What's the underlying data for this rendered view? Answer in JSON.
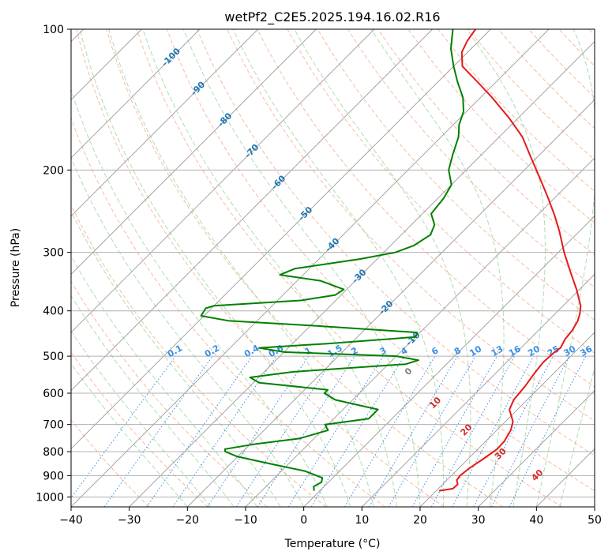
{
  "chart_data": {
    "type": "line",
    "chart_kind": "skew-T log-P",
    "title": "wetPf2_C2E5.2025.194.16.02.R16",
    "xlabel": "Temperature (°C)",
    "ylabel": "Pressure (hPa)",
    "xlim": [
      -40,
      50
    ],
    "ylim": [
      1050,
      100
    ],
    "yscale": "log",
    "x_ticks": [
      -40,
      -30,
      -20,
      -10,
      0,
      10,
      20,
      30,
      40,
      50
    ],
    "x_tick_labels": [
      "−40",
      "−30",
      "−20",
      "−10",
      "0",
      "10",
      "20",
      "30",
      "40",
      "50"
    ],
    "y_ticks": [
      1000,
      900,
      800,
      700,
      600,
      500,
      400,
      300,
      200,
      100
    ],
    "y_tick_labels": [
      "1000",
      "900",
      "800",
      "700",
      "600",
      "500",
      "400",
      "300",
      "200",
      "100"
    ],
    "grid": true,
    "colors": {
      "temperature": "#e41a1c",
      "dewpoint": "#008000",
      "dry_adiabat": "#f4a582",
      "moist_adiabat": "#8fce8f",
      "mixing_ratio": "#3a8ee6",
      "isotherm": "#9a9a9a",
      "isotherm_label": "#1f77b4",
      "mixing_label": "#3a8ee6",
      "adiabat_label": "#d62728"
    },
    "isotherm_labels": {
      "values": [
        -100,
        -90,
        -80,
        -70,
        -60,
        -50,
        -40,
        -30,
        -20,
        -10
      ],
      "text": [
        "-100",
        "-90",
        "-80",
        "-70",
        "-60",
        "-50",
        "-40",
        "-30",
        "-20",
        "-10"
      ]
    },
    "mixing_ratio_labels": {
      "values": [
        0.1,
        0.2,
        0.4,
        0.6,
        1,
        1.5,
        2,
        3,
        4,
        6,
        8,
        10,
        13,
        16,
        20,
        25,
        30,
        36
      ],
      "text": [
        "0.1",
        "0.2",
        "0.4",
        "0.6",
        "1",
        "1.5",
        "2",
        "3",
        "4",
        "6",
        "8",
        "10",
        "13",
        "16",
        "20",
        "25",
        "30",
        "36"
      ]
    },
    "moist_adiabat_labels": {
      "values": [
        0,
        10,
        20,
        30,
        40
      ],
      "text": [
        "0",
        "10",
        "20",
        "30",
        "40"
      ]
    },
    "series": [
      {
        "name": "temperature",
        "points": [
          {
            "p": 970,
            "t": 20.5
          },
          {
            "p": 960,
            "t": 22.5
          },
          {
            "p": 940,
            "t": 22.6
          },
          {
            "p": 920,
            "t": 21.7
          },
          {
            "p": 900,
            "t": 21.5
          },
          {
            "p": 870,
            "t": 21.8
          },
          {
            "p": 830,
            "t": 22.6
          },
          {
            "p": 790,
            "t": 23.3
          },
          {
            "p": 760,
            "t": 23.2
          },
          {
            "p": 720,
            "t": 22.4
          },
          {
            "p": 690,
            "t": 21.3
          },
          {
            "p": 650,
            "t": 18.6
          },
          {
            "p": 620,
            "t": 17.7
          },
          {
            "p": 580,
            "t": 17.3
          },
          {
            "p": 545,
            "t": 16.7
          },
          {
            "p": 515,
            "t": 16.3
          },
          {
            "p": 490,
            "t": 16.5
          },
          {
            "p": 480,
            "t": 16.8
          },
          {
            "p": 460,
            "t": 16.1
          },
          {
            "p": 440,
            "t": 15.8
          },
          {
            "p": 420,
            "t": 15.1
          },
          {
            "p": 405,
            "t": 14.2
          },
          {
            "p": 390,
            "t": 13.0
          },
          {
            "p": 360,
            "t": 9.5
          },
          {
            "p": 330,
            "t": 5.4
          },
          {
            "p": 300,
            "t": 1.0
          },
          {
            "p": 270,
            "t": -3.5
          },
          {
            "p": 250,
            "t": -7.0
          },
          {
            "p": 230,
            "t": -11.0
          },
          {
            "p": 210,
            "t": -15.5
          },
          {
            "p": 190,
            "t": -20.5
          },
          {
            "p": 170,
            "t": -26.0
          },
          {
            "p": 155,
            "t": -31.5
          },
          {
            "p": 140,
            "t": -38.0
          },
          {
            "p": 130,
            "t": -43.0
          },
          {
            "p": 120,
            "t": -48.5
          },
          {
            "p": 112,
            "t": -51.0
          },
          {
            "p": 106,
            "t": -52.0
          },
          {
            "p": 100,
            "t": -52.6
          }
        ]
      },
      {
        "name": "dewpoint",
        "points": [
          {
            "p": 970,
            "t": -1.0
          },
          {
            "p": 950,
            "t": -1.8
          },
          {
            "p": 930,
            "t": -1.2
          },
          {
            "p": 910,
            "t": -1.8
          },
          {
            "p": 880,
            "t": -6.0
          },
          {
            "p": 850,
            "t": -13.0
          },
          {
            "p": 820,
            "t": -20.0
          },
          {
            "p": 800,
            "t": -23.0
          },
          {
            "p": 790,
            "t": -23.5
          },
          {
            "p": 770,
            "t": -19.0
          },
          {
            "p": 750,
            "t": -12.5
          },
          {
            "p": 720,
            "t": -9.0
          },
          {
            "p": 700,
            "t": -10.5
          },
          {
            "p": 680,
            "t": -4.0
          },
          {
            "p": 650,
            "t": -4.0
          },
          {
            "p": 620,
            "t": -13.0
          },
          {
            "p": 600,
            "t": -16.0
          },
          {
            "p": 590,
            "t": -16.0
          },
          {
            "p": 570,
            "t": -29.0
          },
          {
            "p": 555,
            "t": -31.5
          },
          {
            "p": 540,
            "t": -25.0
          },
          {
            "p": 520,
            "t": -7.0
          },
          {
            "p": 510,
            "t": -5.5
          },
          {
            "p": 500,
            "t": -10.0
          },
          {
            "p": 490,
            "t": -30.0
          },
          {
            "p": 480,
            "t": -35.0
          },
          {
            "p": 470,
            "t": -24.0
          },
          {
            "p": 455,
            "t": -10.0
          },
          {
            "p": 445,
            "t": -10.5
          },
          {
            "p": 430,
            "t": -30.0
          },
          {
            "p": 420,
            "t": -45.0
          },
          {
            "p": 410,
            "t": -50.5
          },
          {
            "p": 395,
            "t": -51.0
          },
          {
            "p": 390,
            "t": -50.0
          },
          {
            "p": 380,
            "t": -36.0
          },
          {
            "p": 370,
            "t": -31.0
          },
          {
            "p": 360,
            "t": -30.5
          },
          {
            "p": 345,
            "t": -36.0
          },
          {
            "p": 335,
            "t": -44.0
          },
          {
            "p": 325,
            "t": -42.5
          },
          {
            "p": 310,
            "t": -33.0
          },
          {
            "p": 300,
            "t": -28.0
          },
          {
            "p": 290,
            "t": -26.0
          },
          {
            "p": 275,
            "t": -25.0
          },
          {
            "p": 262,
            "t": -26.0
          },
          {
            "p": 248,
            "t": -28.5
          },
          {
            "p": 230,
            "t": -29.0
          },
          {
            "p": 215,
            "t": -30.0
          },
          {
            "p": 200,
            "t": -33.0
          },
          {
            "p": 185,
            "t": -35.0
          },
          {
            "p": 170,
            "t": -37.0
          },
          {
            "p": 160,
            "t": -39.0
          },
          {
            "p": 150,
            "t": -40.5
          },
          {
            "p": 140,
            "t": -43.0
          },
          {
            "p": 130,
            "t": -46.5
          },
          {
            "p": 120,
            "t": -50.0
          },
          {
            "p": 110,
            "t": -53.5
          },
          {
            "p": 100,
            "t": -56.5
          }
        ]
      }
    ]
  }
}
